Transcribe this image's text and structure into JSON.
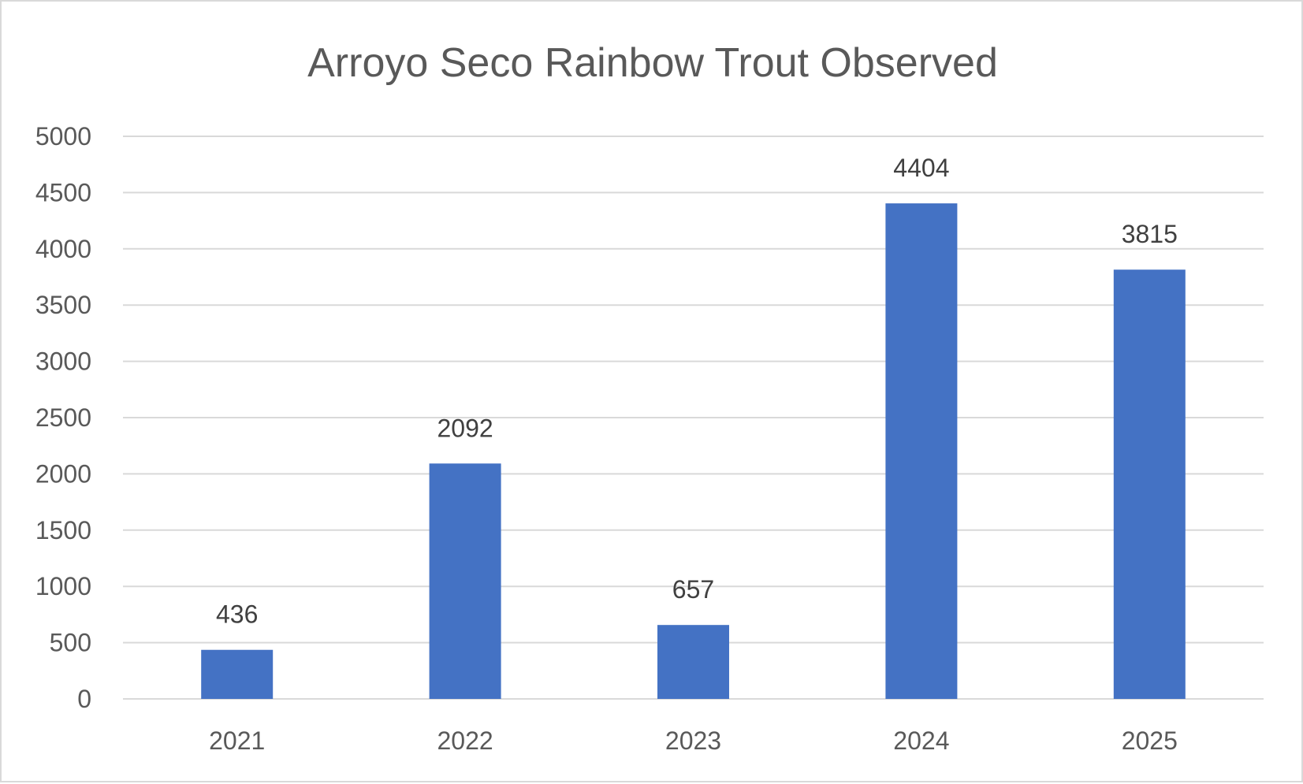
{
  "chart_data": {
    "type": "bar",
    "title": "Arroyo Seco Rainbow Trout Observed",
    "categories": [
      "2021",
      "2022",
      "2023",
      "2024",
      "2025"
    ],
    "values": [
      436,
      2092,
      657,
      4404,
      3815
    ],
    "data_labels": [
      "436",
      "2092",
      "657",
      "4404",
      "3815"
    ],
    "xlabel": "",
    "ylabel": "",
    "ylim": [
      0,
      5000
    ],
    "yticks": [
      0,
      500,
      1000,
      1500,
      2000,
      2500,
      3000,
      3500,
      4000,
      4500,
      5000
    ],
    "grid": true,
    "legend": "none",
    "colors": {
      "bar": "#4472c4",
      "grid": "#d9d9d9",
      "text": "#595959",
      "label": "#404040"
    }
  }
}
